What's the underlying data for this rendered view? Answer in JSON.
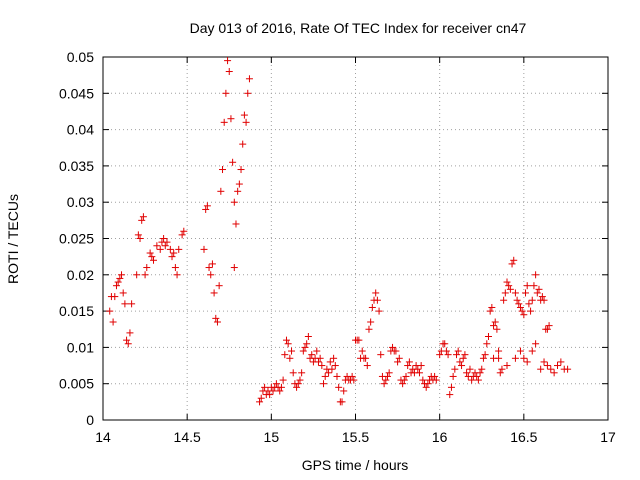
{
  "chart_data": {
    "type": "scatter",
    "title": "Day 013 of 2016, Rate Of TEC Index for receiver cn47",
    "xlabel": "GPS time / hours",
    "ylabel": "ROTI / TECUs",
    "xlim": [
      14,
      17
    ],
    "ylim": [
      0,
      0.05
    ],
    "xticks": [
      14,
      14.5,
      15,
      15.5,
      16,
      16.5,
      17
    ],
    "xtick_labels": [
      "14",
      "14.5",
      "15",
      "15.5",
      "16",
      "16.5",
      "17"
    ],
    "yticks": [
      0,
      0.005,
      0.01,
      0.015,
      0.02,
      0.025,
      0.03,
      0.035,
      0.04,
      0.045,
      0.05
    ],
    "ytick_labels": [
      "0",
      "0.005",
      "0.01",
      "0.015",
      "0.02",
      "0.025",
      "0.03",
      "0.035",
      "0.04",
      "0.045",
      "0.05"
    ],
    "grid": true,
    "marker": "+",
    "color": "#e00000",
    "series": [
      {
        "name": "ROTI",
        "points": [
          [
            14.04,
            0.015
          ],
          [
            14.05,
            0.017
          ],
          [
            14.06,
            0.0135
          ],
          [
            14.07,
            0.017
          ],
          [
            14.08,
            0.0185
          ],
          [
            14.09,
            0.019
          ],
          [
            14.1,
            0.0195
          ],
          [
            14.11,
            0.02
          ],
          [
            14.12,
            0.0175
          ],
          [
            14.13,
            0.016
          ],
          [
            14.14,
            0.011
          ],
          [
            14.15,
            0.0105
          ],
          [
            14.16,
            0.012
          ],
          [
            14.17,
            0.016
          ],
          [
            14.2,
            0.02
          ],
          [
            14.21,
            0.0255
          ],
          [
            14.22,
            0.025
          ],
          [
            14.23,
            0.0275
          ],
          [
            14.24,
            0.028
          ],
          [
            14.25,
            0.02
          ],
          [
            14.26,
            0.021
          ],
          [
            14.28,
            0.023
          ],
          [
            14.29,
            0.0225
          ],
          [
            14.3,
            0.022
          ],
          [
            14.32,
            0.024
          ],
          [
            14.34,
            0.0235
          ],
          [
            14.35,
            0.0245
          ],
          [
            14.36,
            0.025
          ],
          [
            14.37,
            0.024
          ],
          [
            14.38,
            0.0245
          ],
          [
            14.4,
            0.0235
          ],
          [
            14.41,
            0.0225
          ],
          [
            14.42,
            0.023
          ],
          [
            14.43,
            0.021
          ],
          [
            14.44,
            0.02
          ],
          [
            14.45,
            0.0235
          ],
          [
            14.47,
            0.0255
          ],
          [
            14.48,
            0.026
          ],
          [
            14.6,
            0.0235
          ],
          [
            14.61,
            0.029
          ],
          [
            14.62,
            0.0295
          ],
          [
            14.63,
            0.021
          ],
          [
            14.64,
            0.02
          ],
          [
            14.65,
            0.0215
          ],
          [
            14.66,
            0.0175
          ],
          [
            14.67,
            0.014
          ],
          [
            14.68,
            0.0135
          ],
          [
            14.69,
            0.0185
          ],
          [
            14.7,
            0.0315
          ],
          [
            14.71,
            0.0345
          ],
          [
            14.72,
            0.041
          ],
          [
            14.73,
            0.045
          ],
          [
            14.74,
            0.0495
          ],
          [
            14.75,
            0.048
          ],
          [
            14.76,
            0.0415
          ],
          [
            14.77,
            0.0355
          ],
          [
            14.78,
            0.03
          ],
          [
            14.79,
            0.027
          ],
          [
            14.8,
            0.0315
          ],
          [
            14.81,
            0.0325
          ],
          [
            14.82,
            0.0345
          ],
          [
            14.83,
            0.038
          ],
          [
            14.84,
            0.042
          ],
          [
            14.85,
            0.041
          ],
          [
            14.86,
            0.045
          ],
          [
            14.87,
            0.047
          ],
          [
            14.78,
            0.021
          ],
          [
            14.93,
            0.0025
          ],
          [
            14.94,
            0.003
          ],
          [
            14.95,
            0.004
          ],
          [
            14.96,
            0.0045
          ],
          [
            14.97,
            0.0035
          ],
          [
            14.98,
            0.004
          ],
          [
            14.99,
            0.0035
          ],
          [
            15.0,
            0.0045
          ],
          [
            15.01,
            0.004
          ],
          [
            15.02,
            0.0045
          ],
          [
            15.03,
            0.005
          ],
          [
            15.04,
            0.0045
          ],
          [
            15.05,
            0.004
          ],
          [
            15.06,
            0.0045
          ],
          [
            15.07,
            0.0055
          ],
          [
            15.08,
            0.009
          ],
          [
            15.09,
            0.011
          ],
          [
            15.1,
            0.0105
          ],
          [
            15.11,
            0.0085
          ],
          [
            15.12,
            0.0095
          ],
          [
            15.13,
            0.0065
          ],
          [
            15.14,
            0.005
          ],
          [
            15.15,
            0.0045
          ],
          [
            15.16,
            0.005
          ],
          [
            15.17,
            0.0055
          ],
          [
            15.18,
            0.0065
          ],
          [
            15.19,
            0.0095
          ],
          [
            15.2,
            0.01
          ],
          [
            15.21,
            0.0105
          ],
          [
            15.22,
            0.0115
          ],
          [
            15.23,
            0.0085
          ],
          [
            15.24,
            0.009
          ],
          [
            15.25,
            0.008
          ],
          [
            15.26,
            0.0085
          ],
          [
            15.27,
            0.0095
          ],
          [
            15.28,
            0.008
          ],
          [
            15.29,
            0.0085
          ],
          [
            15.3,
            0.0075
          ],
          [
            15.31,
            0.005
          ],
          [
            15.32,
            0.006
          ],
          [
            15.33,
            0.007
          ],
          [
            15.34,
            0.0065
          ],
          [
            15.35,
            0.008
          ],
          [
            15.36,
            0.007
          ],
          [
            15.37,
            0.0085
          ],
          [
            15.38,
            0.0075
          ],
          [
            15.39,
            0.006
          ],
          [
            15.4,
            0.0045
          ],
          [
            15.41,
            0.0025
          ],
          [
            15.42,
            0.0025
          ],
          [
            15.43,
            0.004
          ],
          [
            15.44,
            0.0055
          ],
          [
            15.45,
            0.006
          ],
          [
            15.46,
            0.0055
          ],
          [
            15.47,
            0.0055
          ],
          [
            15.48,
            0.006
          ],
          [
            15.49,
            0.0055
          ],
          [
            15.5,
            0.011
          ],
          [
            15.51,
            0.011
          ],
          [
            15.52,
            0.011
          ],
          [
            15.53,
            0.0085
          ],
          [
            15.54,
            0.0095
          ],
          [
            15.55,
            0.0085
          ],
          [
            15.56,
            0.0085
          ],
          [
            15.57,
            0.0075
          ],
          [
            15.58,
            0.0125
          ],
          [
            15.59,
            0.0135
          ],
          [
            15.6,
            0.0155
          ],
          [
            15.61,
            0.0165
          ],
          [
            15.62,
            0.0175
          ],
          [
            15.63,
            0.0165
          ],
          [
            15.64,
            0.015
          ],
          [
            15.65,
            0.009
          ],
          [
            15.66,
            0.006
          ],
          [
            15.67,
            0.005
          ],
          [
            15.68,
            0.0055
          ],
          [
            15.69,
            0.006
          ],
          [
            15.7,
            0.0065
          ],
          [
            15.71,
            0.0095
          ],
          [
            15.72,
            0.01
          ],
          [
            15.73,
            0.0095
          ],
          [
            15.74,
            0.0095
          ],
          [
            15.75,
            0.008
          ],
          [
            15.76,
            0.0085
          ],
          [
            15.77,
            0.0055
          ],
          [
            15.78,
            0.005
          ],
          [
            15.79,
            0.0055
          ],
          [
            15.8,
            0.006
          ],
          [
            15.81,
            0.0075
          ],
          [
            15.82,
            0.008
          ],
          [
            15.83,
            0.0065
          ],
          [
            15.84,
            0.007
          ],
          [
            15.85,
            0.0065
          ],
          [
            15.86,
            0.0075
          ],
          [
            15.87,
            0.007
          ],
          [
            15.88,
            0.0065
          ],
          [
            15.89,
            0.0075
          ],
          [
            15.9,
            0.0055
          ],
          [
            15.91,
            0.005
          ],
          [
            15.92,
            0.0045
          ],
          [
            15.93,
            0.005
          ],
          [
            15.94,
            0.0055
          ],
          [
            15.95,
            0.006
          ],
          [
            15.96,
            0.0055
          ],
          [
            15.97,
            0.006
          ],
          [
            15.98,
            0.0055
          ],
          [
            16.0,
            0.009
          ],
          [
            16.01,
            0.0095
          ],
          [
            16.02,
            0.0105
          ],
          [
            16.03,
            0.0105
          ],
          [
            16.04,
            0.0095
          ],
          [
            16.05,
            0.009
          ],
          [
            16.06,
            0.0035
          ],
          [
            16.07,
            0.0045
          ],
          [
            16.08,
            0.006
          ],
          [
            16.09,
            0.007
          ],
          [
            16.1,
            0.009
          ],
          [
            16.11,
            0.0095
          ],
          [
            16.12,
            0.008
          ],
          [
            16.13,
            0.0075
          ],
          [
            16.14,
            0.0085
          ],
          [
            16.15,
            0.009
          ],
          [
            16.16,
            0.0065
          ],
          [
            16.17,
            0.006
          ],
          [
            16.18,
            0.007
          ],
          [
            16.19,
            0.0055
          ],
          [
            16.2,
            0.006
          ],
          [
            16.21,
            0.0065
          ],
          [
            16.22,
            0.006
          ],
          [
            16.23,
            0.0055
          ],
          [
            16.24,
            0.0065
          ],
          [
            16.25,
            0.007
          ],
          [
            16.26,
            0.0085
          ],
          [
            16.27,
            0.009
          ],
          [
            16.28,
            0.0105
          ],
          [
            16.29,
            0.0115
          ],
          [
            16.3,
            0.015
          ],
          [
            16.31,
            0.0155
          ],
          [
            16.32,
            0.013
          ],
          [
            16.33,
            0.0135
          ],
          [
            16.34,
            0.0125
          ],
          [
            16.35,
            0.0085
          ],
          [
            16.36,
            0.0065
          ],
          [
            16.37,
            0.007
          ],
          [
            16.38,
            0.0165
          ],
          [
            16.39,
            0.0175
          ],
          [
            16.4,
            0.019
          ],
          [
            16.41,
            0.0185
          ],
          [
            16.42,
            0.018
          ],
          [
            16.43,
            0.0215
          ],
          [
            16.44,
            0.022
          ],
          [
            16.45,
            0.0175
          ],
          [
            16.46,
            0.0165
          ],
          [
            16.47,
            0.016
          ],
          [
            16.48,
            0.0155
          ],
          [
            16.49,
            0.015
          ],
          [
            16.5,
            0.0145
          ],
          [
            16.51,
            0.0175
          ],
          [
            16.52,
            0.0185
          ],
          [
            16.53,
            0.016
          ],
          [
            16.54,
            0.015
          ],
          [
            16.55,
            0.0165
          ],
          [
            16.56,
            0.0185
          ],
          [
            16.57,
            0.02
          ],
          [
            16.58,
            0.0175
          ],
          [
            16.59,
            0.018
          ],
          [
            16.6,
            0.0165
          ],
          [
            16.61,
            0.017
          ],
          [
            16.62,
            0.0165
          ],
          [
            16.63,
            0.0125
          ],
          [
            16.64,
            0.0125
          ],
          [
            16.65,
            0.013
          ],
          [
            16.32,
            0.0085
          ],
          [
            16.35,
            0.0095
          ],
          [
            16.4,
            0.0075
          ],
          [
            16.45,
            0.0085
          ],
          [
            16.48,
            0.0095
          ],
          [
            16.5,
            0.0085
          ],
          [
            16.52,
            0.008
          ],
          [
            16.55,
            0.0095
          ],
          [
            16.57,
            0.0105
          ],
          [
            16.6,
            0.007
          ],
          [
            16.62,
            0.008
          ],
          [
            16.64,
            0.0075
          ],
          [
            16.66,
            0.007
          ],
          [
            16.68,
            0.0065
          ],
          [
            16.7,
            0.0075
          ],
          [
            16.72,
            0.008
          ],
          [
            16.74,
            0.007
          ],
          [
            16.76,
            0.007
          ]
        ]
      }
    ]
  }
}
